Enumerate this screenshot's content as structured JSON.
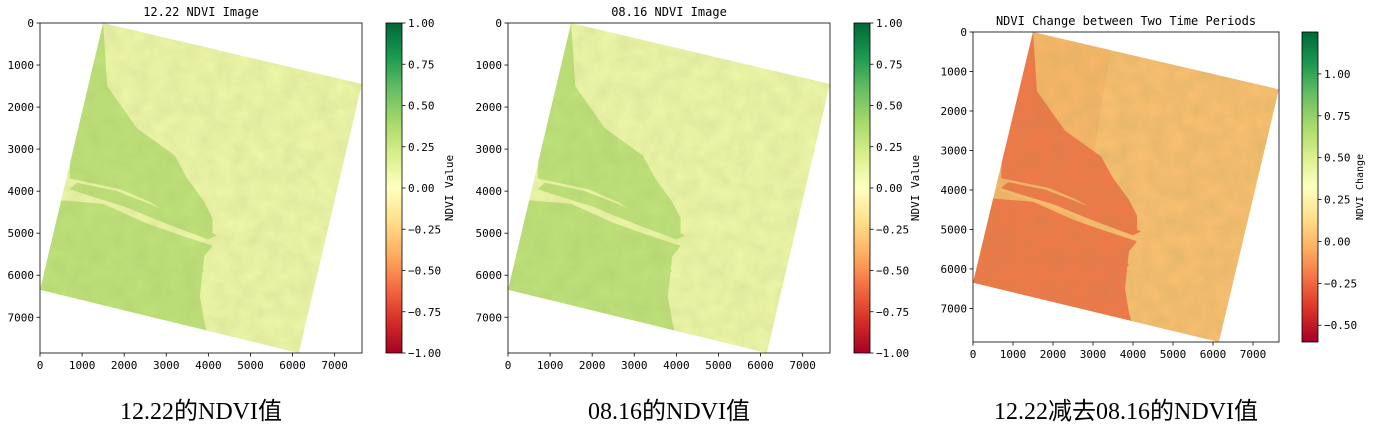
{
  "colors": {
    "rdylgn": [
      "#a50026",
      "#d73027",
      "#f46d43",
      "#fdae61",
      "#fee08b",
      "#ffffbf",
      "#d9ef8b",
      "#a6d96a",
      "#66bd63",
      "#1a9850",
      "#006837"
    ]
  },
  "panels": [
    {
      "title": "12.22 NDVI Image",
      "colorbar_label": "NDVI Value",
      "colorbar_ticks": [
        "1.00",
        "0.75",
        "0.50",
        "0.25",
        "0.00",
        "−0.25",
        "−0.50",
        "−0.75",
        "−1.00"
      ],
      "caption": "12.22的NDVI值"
    },
    {
      "title": "08.16 NDVI Image",
      "colorbar_label": "NDVI Value",
      "colorbar_ticks": [
        "1.00",
        "0.75",
        "0.50",
        "0.25",
        "0.00",
        "−0.25",
        "−0.50",
        "−0.75",
        "−1.00"
      ],
      "caption": "08.16的NDVI值"
    },
    {
      "title": "NDVI Change between Two Time Periods",
      "colorbar_label": "NDVI Change",
      "colorbar_ticks": [
        "1.00",
        "0.75",
        "0.50",
        "0.25",
        "0.00",
        "−0.25",
        "−0.50"
      ],
      "caption": "12.22减去08.16的NDVI值"
    }
  ],
  "chart_data": [
    {
      "type": "heatmap",
      "title": "12.22 NDVI Image",
      "colorbar_label": "NDVI Value",
      "colormap": "RdYlGn",
      "xlim": [
        0,
        7650
      ],
      "ylim": [
        7850,
        0
      ],
      "x_ticks": [
        0,
        1000,
        2000,
        3000,
        4000,
        5000,
        6000,
        7000
      ],
      "y_ticks": [
        0,
        1000,
        2000,
        3000,
        4000,
        5000,
        6000,
        7000
      ],
      "clim": [
        -1.0,
        1.0
      ],
      "regions": [
        {
          "area": "land",
          "ndvi": 0.3
        },
        {
          "area": "water",
          "ndvi": 0.08
        }
      ]
    },
    {
      "type": "heatmap",
      "title": "08.16 NDVI Image",
      "colorbar_label": "NDVI Value",
      "colormap": "RdYlGn",
      "xlim": [
        0,
        7650
      ],
      "ylim": [
        7850,
        0
      ],
      "x_ticks": [
        0,
        1000,
        2000,
        3000,
        4000,
        5000,
        6000,
        7000
      ],
      "y_ticks": [
        0,
        1000,
        2000,
        3000,
        4000,
        5000,
        6000,
        7000
      ],
      "clim": [
        -1.0,
        1.0
      ],
      "regions": [
        {
          "area": "land",
          "ndvi": 0.3
        },
        {
          "area": "water",
          "ndvi": 0.08
        }
      ]
    },
    {
      "type": "heatmap",
      "title": "NDVI Change between Two Time Periods",
      "colorbar_label": "NDVI Change",
      "colormap": "RdYlGn",
      "xlim": [
        0,
        7650
      ],
      "ylim": [
        7850,
        0
      ],
      "x_ticks": [
        0,
        1000,
        2000,
        3000,
        4000,
        5000,
        6000,
        7000
      ],
      "y_ticks": [
        0,
        1000,
        2000,
        3000,
        4000,
        5000,
        6000,
        7000
      ],
      "clim": [
        -0.6,
        1.25
      ],
      "regions": [
        {
          "area": "land",
          "ndvi": -0.2
        },
        {
          "area": "water",
          "ndvi": 0.02
        }
      ]
    }
  ]
}
